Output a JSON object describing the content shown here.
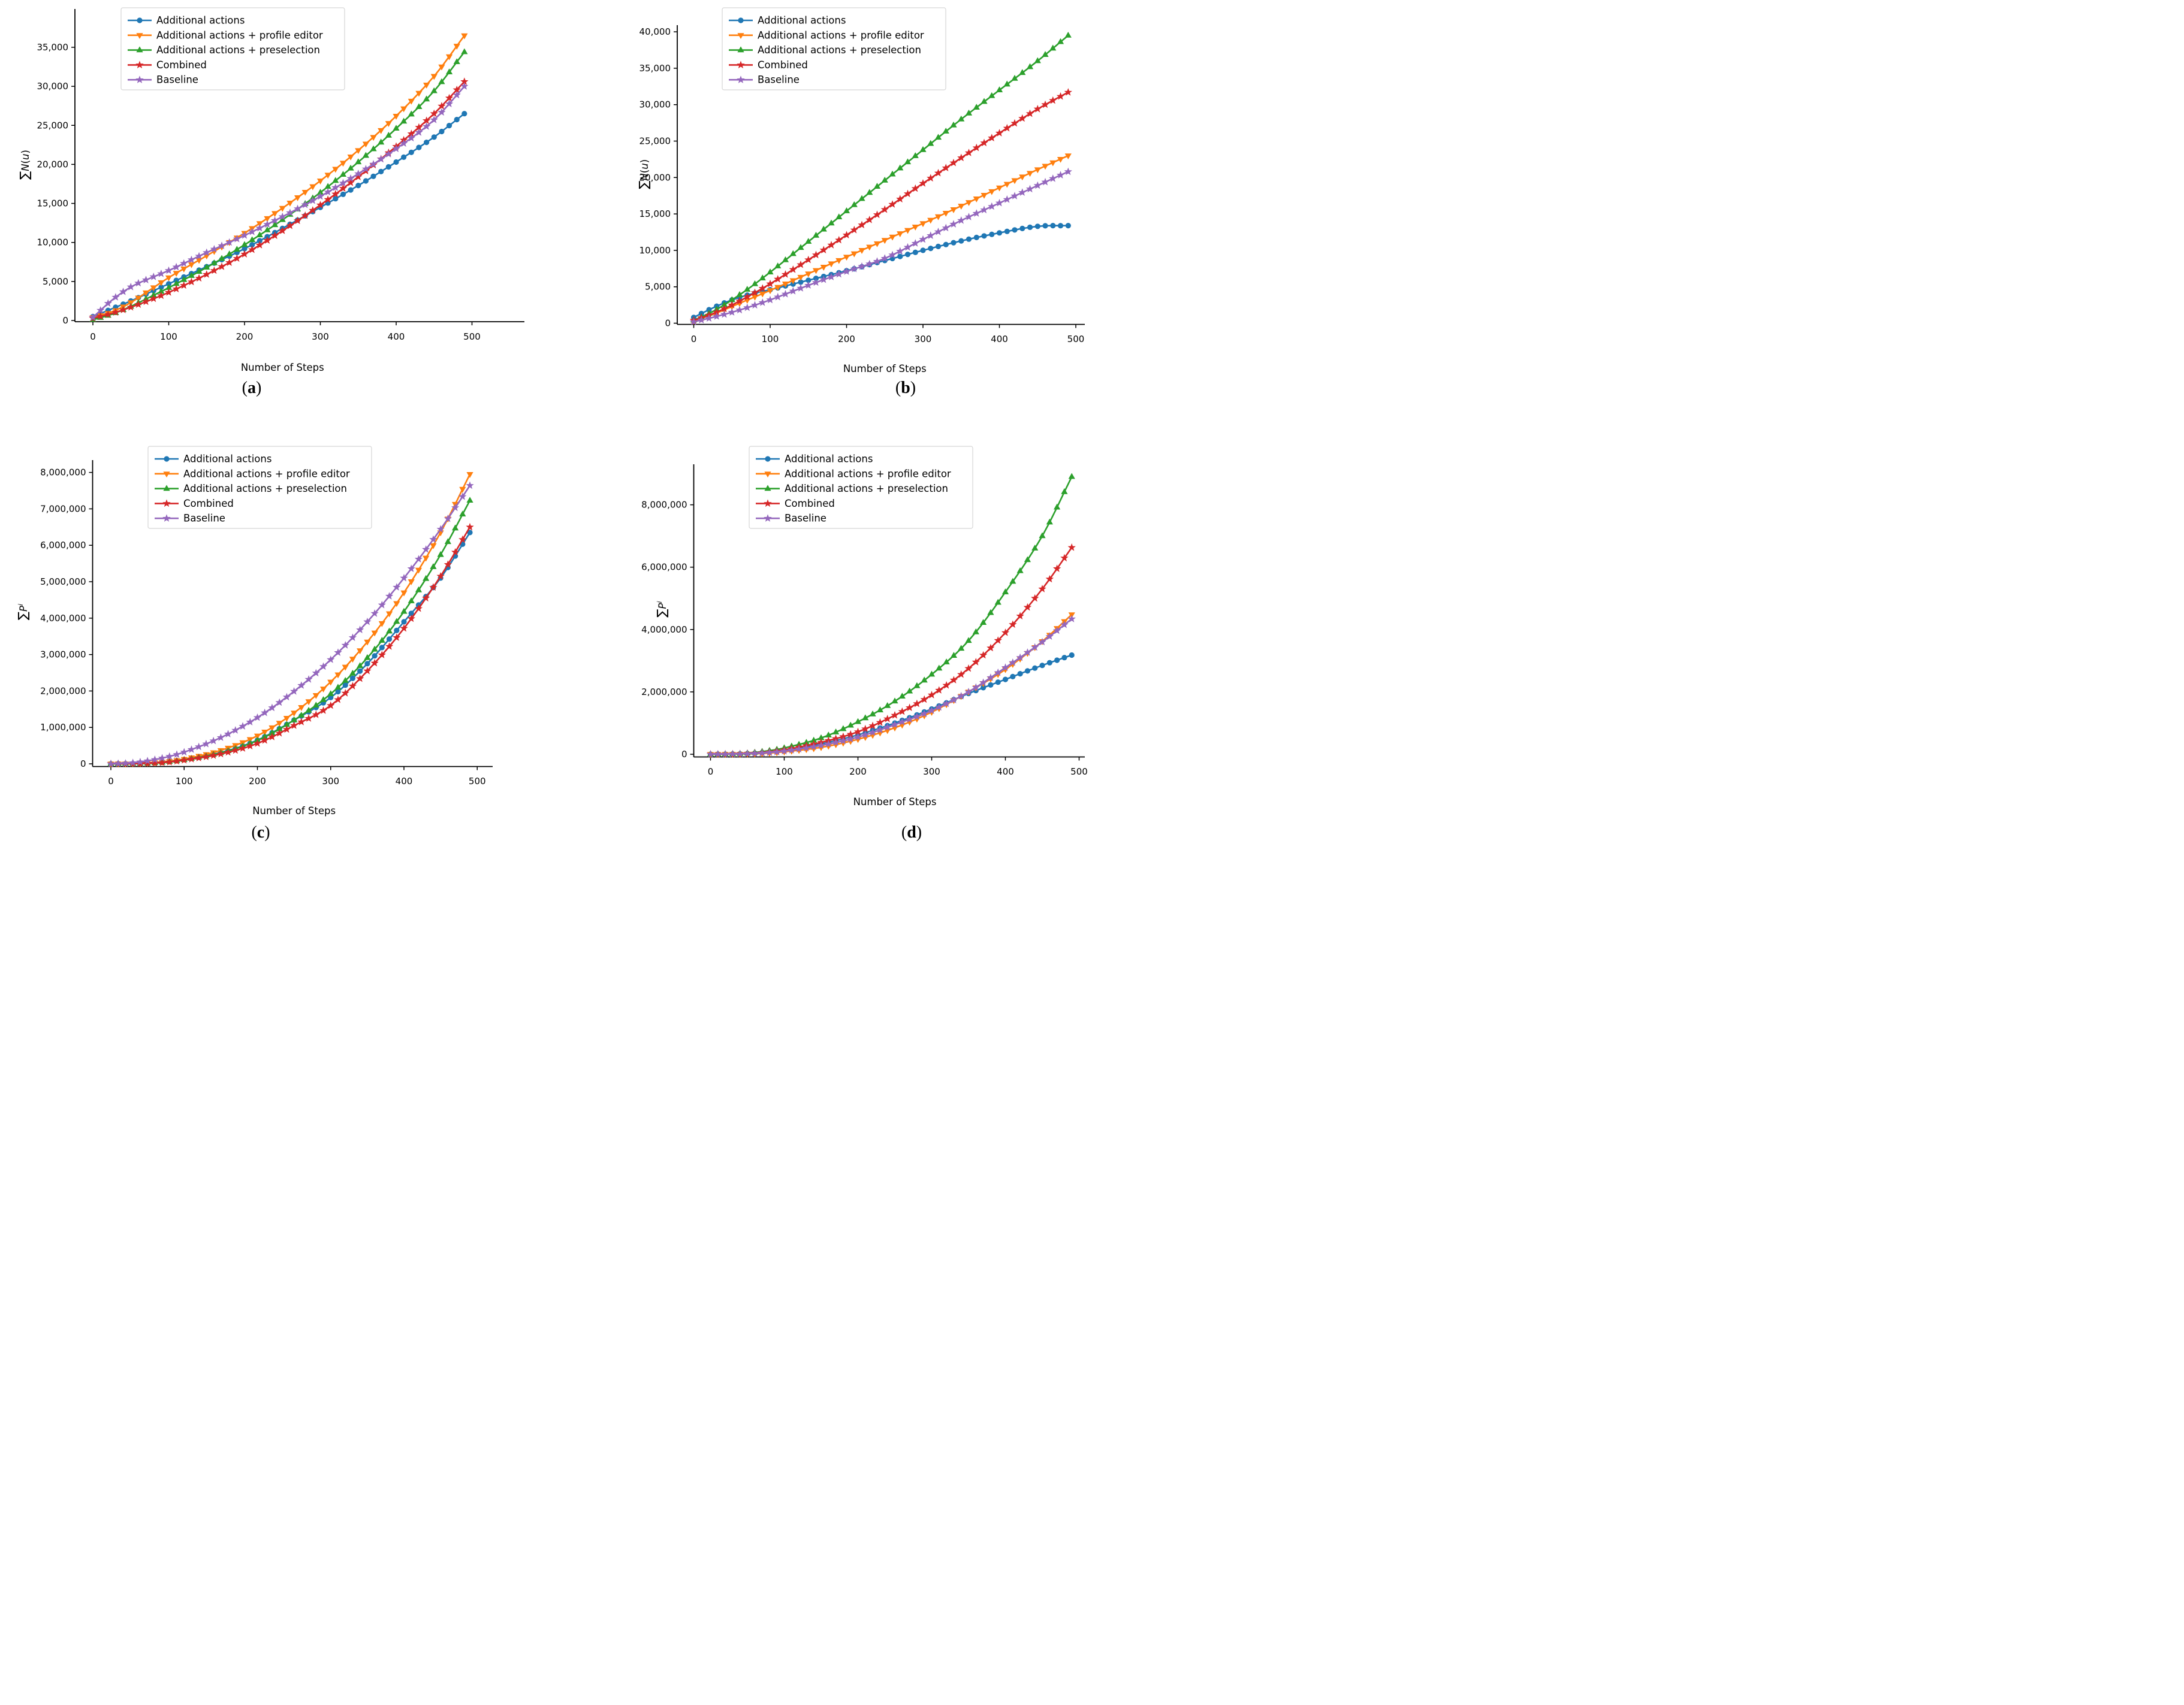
{
  "figure": {
    "xlabel": "Number of Steps",
    "ylabel_top": "∑N(u)",
    "ylabel_bottom": "∑Pⁱ",
    "background": "#ffffff",
    "axis_color": "#000000",
    "legend_border_color": "#d5d5d5",
    "legend_location": "upper left"
  },
  "legend": {
    "items": [
      {
        "label": "Additional actions",
        "color": "#1f77b4",
        "marker": "circle"
      },
      {
        "label": "Additional actions + profile editor",
        "color": "#ff7f0e",
        "marker": "triangle-down"
      },
      {
        "label": "Additional actions + preselection",
        "color": "#2ca02c",
        "marker": "triangle-up"
      },
      {
        "label": "Combined",
        "color": "#d62728",
        "marker": "star"
      },
      {
        "label": "Baseline",
        "color": "#9467bd",
        "marker": "star"
      }
    ]
  },
  "chart_data": [
    {
      "id": "a",
      "caption": "(a)",
      "type": "line",
      "xlabel": "Number of Steps",
      "ylabel": "∑N(u)",
      "xticks": [
        0,
        100,
        200,
        300,
        400,
        500
      ],
      "yticks": [
        0,
        5000,
        10000,
        15000,
        20000,
        25000,
        30000,
        35000
      ],
      "ylim": [
        0,
        39900
      ],
      "xlim": [
        -25,
        525
      ],
      "legend_loc": "upper left",
      "grid": false,
      "x": [
        0,
        25,
        50,
        75,
        100,
        150,
        200,
        250,
        300,
        350,
        400,
        450,
        490
      ],
      "series": [
        {
          "name": "Additional actions",
          "color": "#1f77b4",
          "marker": "circle",
          "values": [
            500,
            1500,
            2500,
            3600,
            4700,
            6900,
            9200,
            11800,
            14500,
            17300,
            20300,
            23500,
            26500
          ]
        },
        {
          "name": "Additional actions + profile editor",
          "color": "#ff7f0e",
          "marker": "triangle-down",
          "values": [
            400,
            1100,
            2300,
            3900,
            5500,
            8300,
            11200,
            14400,
            17900,
            21800,
            26200,
            31300,
            36500
          ]
        },
        {
          "name": "Additional actions + preselection",
          "color": "#2ca02c",
          "marker": "triangle-up",
          "values": [
            100,
            800,
            1800,
            3000,
            4200,
            6800,
            9700,
            12900,
            16400,
            20300,
            24600,
            29400,
            34400
          ]
        },
        {
          "name": "Combined",
          "color": "#d62728",
          "marker": "star",
          "values": [
            300,
            900,
            1700,
            2600,
            3600,
            5900,
            8500,
            11500,
            14800,
            18400,
            22300,
            26500,
            30600
          ]
        },
        {
          "name": "Baseline",
          "color": "#9467bd",
          "marker": "star",
          "values": [
            400,
            2600,
            4300,
            5400,
            6400,
            8700,
            10900,
            13300,
            15900,
            18800,
            22000,
            25700,
            30000
          ]
        }
      ]
    },
    {
      "id": "b",
      "caption": "(b)",
      "type": "line",
      "xlabel": "Number of Steps",
      "ylabel": "∑N(u)",
      "xticks": [
        0,
        100,
        200,
        300,
        400,
        500
      ],
      "yticks": [
        0,
        5000,
        10000,
        15000,
        20000,
        25000,
        30000,
        35000,
        40000
      ],
      "ylim": [
        0,
        41000
      ],
      "xlim": [
        -25,
        525
      ],
      "legend_loc": "upper left",
      "grid": false,
      "x": [
        0,
        25,
        50,
        75,
        100,
        150,
        200,
        250,
        300,
        350,
        400,
        450,
        490
      ],
      "series": [
        {
          "name": "Additional actions",
          "color": "#1f77b4",
          "marker": "circle",
          "values": [
            800,
            2100,
            3200,
            4000,
            4600,
            5900,
            7200,
            8600,
            10000,
            11300,
            12400,
            13300,
            13400
          ]
        },
        {
          "name": "Additional actions + profile editor",
          "color": "#ff7f0e",
          "marker": "triangle-down",
          "values": [
            300,
            1200,
            2300,
            3400,
            4500,
            6800,
            9100,
            11400,
            13700,
            16100,
            18600,
            21100,
            23000
          ]
        },
        {
          "name": "Additional actions + preselection",
          "color": "#2ca02c",
          "marker": "triangle-up",
          "values": [
            400,
            1600,
            3200,
            5000,
            7000,
            11200,
            15400,
            19600,
            23800,
            28000,
            32000,
            36000,
            39500
          ]
        },
        {
          "name": "Combined",
          "color": "#d62728",
          "marker": "star",
          "values": [
            400,
            1300,
            2500,
            3900,
            5400,
            8700,
            12100,
            15600,
            19200,
            22700,
            26100,
            29400,
            31700
          ]
        },
        {
          "name": "Baseline",
          "color": "#9467bd",
          "marker": "star",
          "values": [
            200,
            800,
            1500,
            2300,
            3200,
            5200,
            7100,
            8900,
            11500,
            14100,
            16500,
            18900,
            20800
          ]
        }
      ]
    },
    {
      "id": "c",
      "caption": "(c)",
      "type": "line",
      "xlabel": "Number of Steps",
      "ylabel": "∑Pⁱ",
      "xticks": [
        0,
        100,
        200,
        300,
        400,
        500
      ],
      "yticks": [
        0,
        1000000,
        2000000,
        3000000,
        4000000,
        5000000,
        6000000,
        7000000,
        8000000
      ],
      "ylim": [
        0,
        8600000
      ],
      "xlim": [
        -25,
        525
      ],
      "legend_loc": "upper left",
      "grid": false,
      "x": [
        0,
        25,
        50,
        75,
        100,
        150,
        200,
        250,
        300,
        350,
        400,
        450,
        490
      ],
      "series": [
        {
          "name": "Additional actions",
          "color": "#1f77b4",
          "marker": "circle",
          "values": [
            0,
            4000,
            16000,
            50000,
            120000,
            310000,
            650000,
            1200000,
            1820000,
            2750000,
            3900000,
            5100000,
            6350000
          ]
        },
        {
          "name": "Additional actions + profile editor",
          "color": "#ff7f0e",
          "marker": "triangle-down",
          "values": [
            0,
            5000,
            20000,
            60000,
            130000,
            370000,
            770000,
            1400000,
            2250000,
            3350000,
            4700000,
            6350000,
            7950000
          ]
        },
        {
          "name": "Additional actions + preselection",
          "color": "#2ca02c",
          "marker": "triangle-up",
          "values": [
            0,
            4000,
            15000,
            50000,
            110000,
            300000,
            640000,
            1200000,
            1920000,
            2910000,
            4180000,
            5740000,
            7230000
          ]
        },
        {
          "name": "Combined",
          "color": "#d62728",
          "marker": "star",
          "values": [
            0,
            3000,
            12000,
            40000,
            100000,
            270000,
            560000,
            1050000,
            1600000,
            2550000,
            3720000,
            5150000,
            6500000
          ]
        },
        {
          "name": "Baseline",
          "color": "#9467bd",
          "marker": "star",
          "values": [
            0,
            20000,
            80000,
            180000,
            320000,
            720000,
            1270000,
            1990000,
            2860000,
            3900000,
            5100000,
            6440000,
            7640000
          ]
        }
      ]
    },
    {
      "id": "d",
      "caption": "(d)",
      "type": "line",
      "xlabel": "Number of Steps",
      "ylabel": "∑Pⁱ",
      "xticks": [
        0,
        100,
        200,
        300,
        400,
        500
      ],
      "yticks": [
        0,
        2000000,
        4000000,
        6000000,
        8000000
      ],
      "ylim": [
        0,
        9300000
      ],
      "xlim": [
        -25,
        525
      ],
      "legend_loc": "upper left",
      "grid": false,
      "x": [
        0,
        25,
        50,
        75,
        100,
        150,
        200,
        250,
        300,
        350,
        400,
        450,
        490
      ],
      "series": [
        {
          "name": "Additional actions",
          "color": "#1f77b4",
          "marker": "circle",
          "values": [
            0,
            5000,
            20000,
            60000,
            130000,
            330000,
            620000,
            1000000,
            1450000,
            1950000,
            2400000,
            2850000,
            3180000
          ]
        },
        {
          "name": "Additional actions + profile editor",
          "color": "#ff7f0e",
          "marker": "triangle-down",
          "values": [
            0,
            3000,
            10000,
            30000,
            80000,
            220000,
            480000,
            850000,
            1350000,
            2000000,
            2720000,
            3620000,
            4480000
          ]
        },
        {
          "name": "Additional actions + preselection",
          "color": "#2ca02c",
          "marker": "triangle-up",
          "values": [
            0,
            8000,
            35000,
            100000,
            200000,
            520000,
            1040000,
            1700000,
            2560000,
            3640000,
            5200000,
            7000000,
            8900000
          ]
        },
        {
          "name": "Combined",
          "color": "#d62728",
          "marker": "star",
          "values": [
            0,
            5000,
            20000,
            60000,
            140000,
            380000,
            720000,
            1250000,
            1900000,
            2750000,
            3900000,
            5300000,
            6630000
          ]
        },
        {
          "name": "Baseline",
          "color": "#9467bd",
          "marker": "star",
          "values": [
            0,
            4000,
            15000,
            45000,
            100000,
            280000,
            550000,
            950000,
            1400000,
            2000000,
            2780000,
            3600000,
            4340000
          ]
        }
      ]
    }
  ]
}
